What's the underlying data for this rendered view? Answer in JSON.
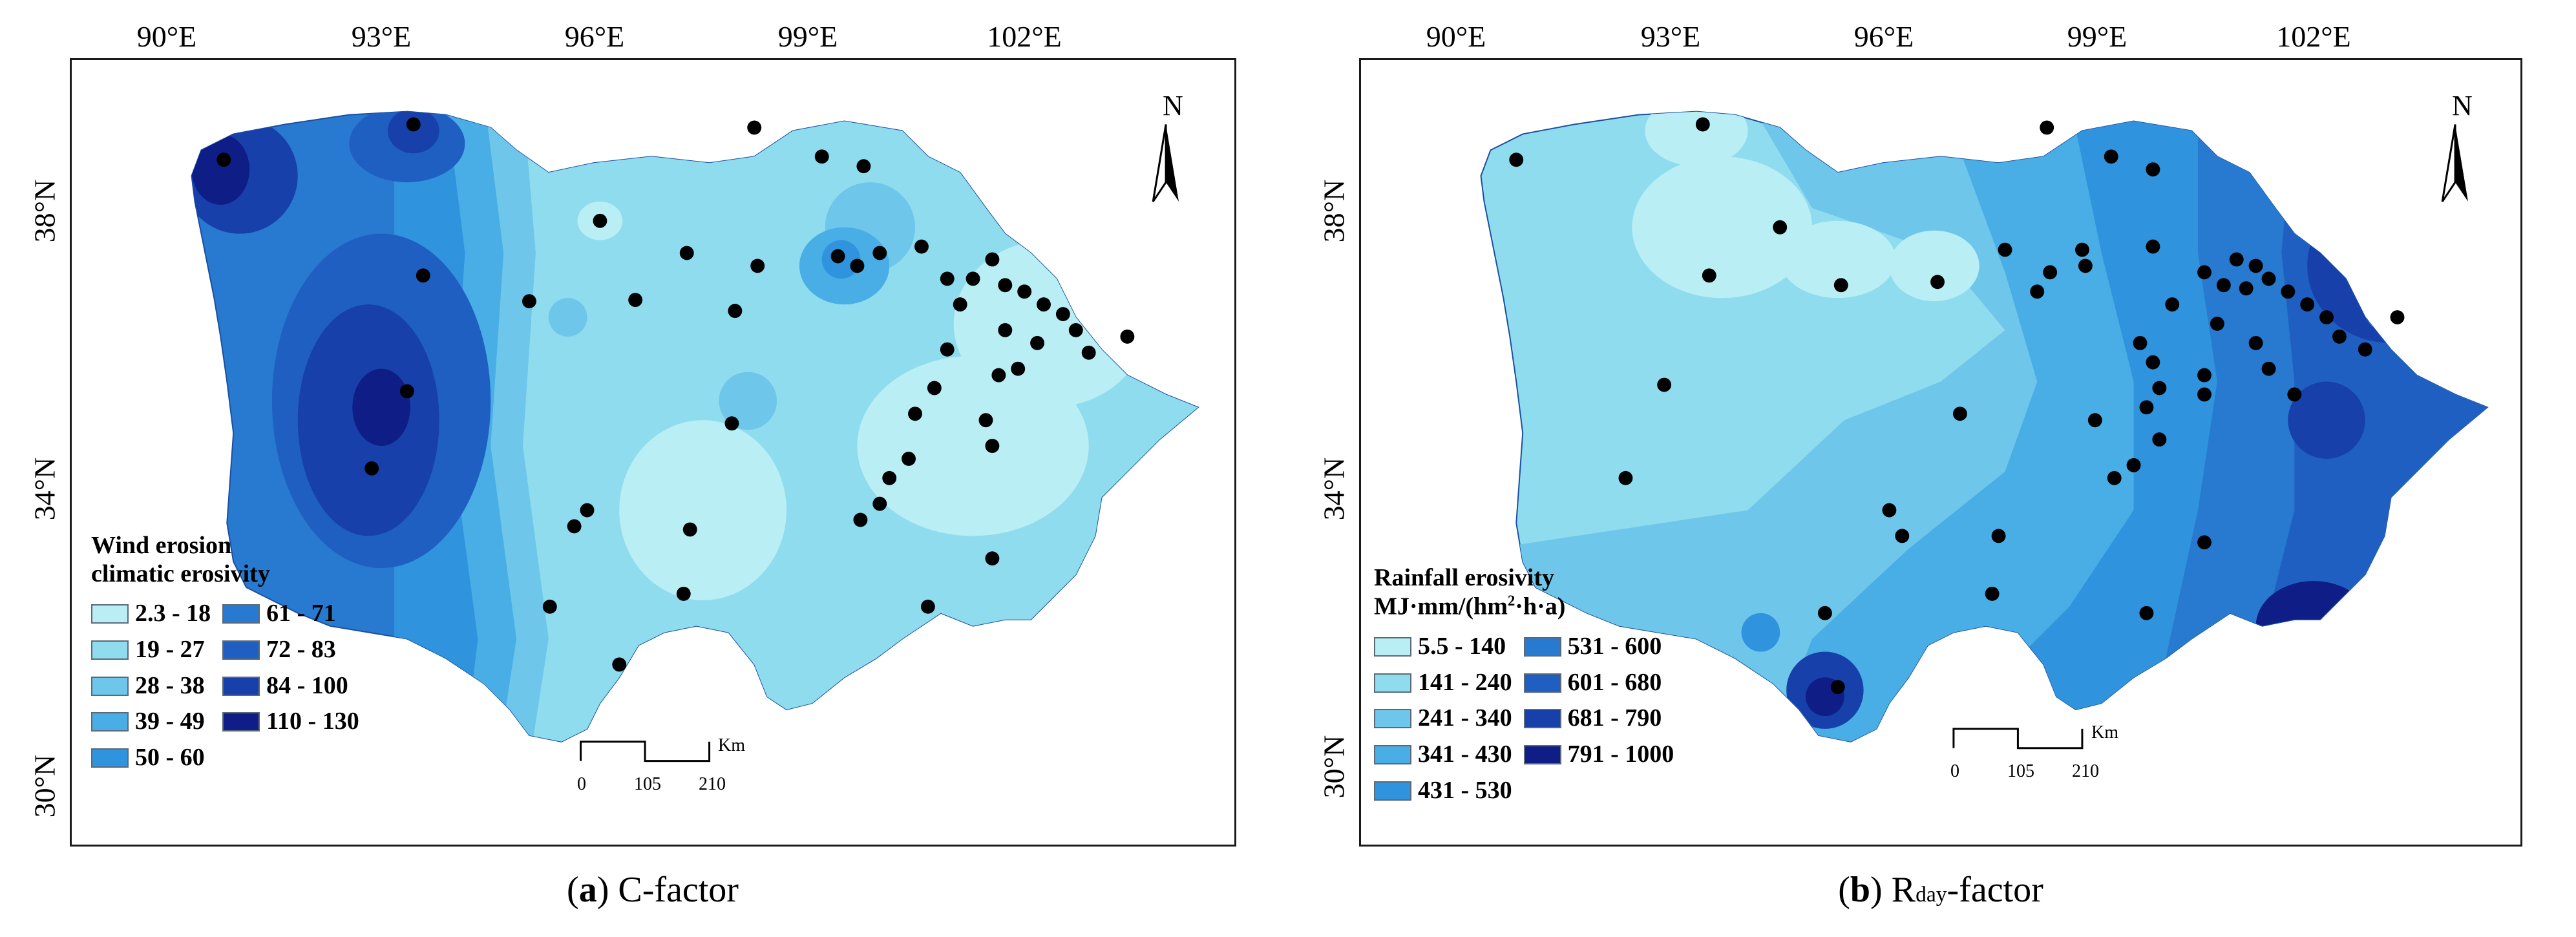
{
  "panel_a": {
    "lon_ticks": [
      "90°E",
      "93°E",
      "96°E",
      "99°E",
      "102°E"
    ],
    "lat_ticks": [
      "38°N",
      "34°N",
      "30°N"
    ],
    "north_label": "N",
    "scale": {
      "labels": [
        "0",
        "105",
        "210"
      ],
      "unit": "Km"
    },
    "legend": {
      "title_line1": "Wind erosion",
      "title_line2": "climatic erosivity",
      "classes": [
        {
          "label": "2.3 - 18",
          "color": "#b9eef4"
        },
        {
          "label": "19 - 27",
          "color": "#8fdcee"
        },
        {
          "label": "28 - 38",
          "color": "#6ec6ea"
        },
        {
          "label": "39 - 49",
          "color": "#49aee6"
        },
        {
          "label": "50 - 60",
          "color": "#2f93dd"
        },
        {
          "label": "61 - 71",
          "color": "#2879d0"
        },
        {
          "label": "72 - 83",
          "color": "#1f5fc2"
        },
        {
          "label": "84 - 100",
          "color": "#1740aa"
        },
        {
          "label": "110 - 130",
          "color": "#0f1d86"
        }
      ]
    },
    "caption": {
      "letter": "a",
      "text": " C-factor"
    }
  },
  "panel_b": {
    "lon_ticks": [
      "90°E",
      "93°E",
      "96°E",
      "99°E",
      "102°E"
    ],
    "lat_ticks": [
      "38°N",
      "34°N",
      "30°N"
    ],
    "north_label": "N",
    "scale": {
      "labels": [
        "0",
        "105",
        "210"
      ],
      "unit": "Km"
    },
    "legend": {
      "title_line1": "Rainfall erosivity",
      "unit_pre": "MJ·mm/(hm",
      "unit_sup": "2",
      "unit_post": "·h·a)",
      "classes": [
        {
          "label": "5.5 - 140",
          "color": "#b9eef4"
        },
        {
          "label": "141 - 240",
          "color": "#8fdcee"
        },
        {
          "label": "241 - 340",
          "color": "#6ec6ea"
        },
        {
          "label": "341 - 430",
          "color": "#49aee6"
        },
        {
          "label": "431 - 530",
          "color": "#2f93dd"
        },
        {
          "label": "531 - 600",
          "color": "#2879d0"
        },
        {
          "label": "601 - 680",
          "color": "#1f5fc2"
        },
        {
          "label": "681 - 790",
          "color": "#1740aa"
        },
        {
          "label": "791 - 1000",
          "color": "#0f1d86"
        }
      ]
    },
    "caption": {
      "letter": "b",
      "text_r": " R",
      "text_sub": "day",
      "text_post": "-factor"
    }
  }
}
